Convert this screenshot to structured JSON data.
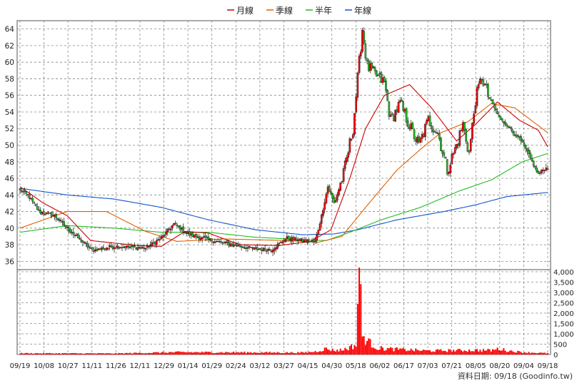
{
  "chart_data": {
    "type": "candlestick",
    "legend": {
      "position": "top-center",
      "items": [
        {
          "label": "月線",
          "color": "#cc0000"
        },
        {
          "label": "季線",
          "color": "#e06000"
        },
        {
          "label": "半年",
          "color": "#22bb22"
        },
        {
          "label": "年線",
          "color": "#1155cc"
        }
      ]
    },
    "colors": {
      "up": "#ff0000",
      "down": "#22bb22",
      "volume": "#ff0000",
      "grid": "#888888"
    },
    "price_axis": {
      "ylim": [
        35,
        65
      ],
      "ticks": [
        36,
        38,
        40,
        42,
        44,
        46,
        48,
        50,
        52,
        54,
        56,
        58,
        60,
        62,
        64
      ]
    },
    "volume_axis": {
      "ylim": [
        0,
        4000
      ],
      "ticks": [
        0,
        500,
        1000,
        1500,
        2000,
        2500,
        3000,
        3500,
        4000
      ],
      "tick_labels": [
        "0",
        "500",
        "1,000",
        "1,500",
        "2,000",
        "2,500",
        "3,000",
        "3,500",
        "4,000"
      ]
    },
    "x_labels": [
      "09/19",
      "10/08",
      "10/27",
      "11/11",
      "11/26",
      "12/11",
      "12/29",
      "01/14",
      "01/29",
      "02/24",
      "03/12",
      "03/27",
      "04/15",
      "04/30",
      "05/18",
      "06/02",
      "06/17",
      "07/03",
      "07/21",
      "08/05",
      "08/20",
      "09/04",
      "09/18"
    ],
    "grid": true,
    "footer": "資料日期: 09/18 (Goodinfo.tw)",
    "price_anchors": [
      [
        0,
        44.5
      ],
      [
        5,
        44.0
      ],
      [
        12,
        42.0
      ],
      [
        22,
        41.5
      ],
      [
        30,
        40.0
      ],
      [
        40,
        38.3
      ],
      [
        46,
        37.3
      ],
      [
        60,
        37.8
      ],
      [
        80,
        37.6
      ],
      [
        90,
        38.8
      ],
      [
        98,
        40.5
      ],
      [
        108,
        39.2
      ],
      [
        125,
        38.4
      ],
      [
        140,
        37.8
      ],
      [
        150,
        37.5
      ],
      [
        160,
        37.4
      ],
      [
        170,
        38.8
      ],
      [
        180,
        38.5
      ],
      [
        188,
        38.3
      ],
      [
        192,
        41.5
      ],
      [
        196,
        45.0
      ],
      [
        200,
        43.0
      ],
      [
        206,
        46.5
      ],
      [
        212,
        52.0
      ],
      [
        218,
        64.0
      ],
      [
        221,
        59.5
      ],
      [
        226,
        58.5
      ],
      [
        232,
        57.5
      ],
      [
        236,
        53.0
      ],
      [
        242,
        55.0
      ],
      [
        250,
        51.5
      ],
      [
        254,
        50.0
      ],
      [
        260,
        53.0
      ],
      [
        266,
        51.5
      ],
      [
        272,
        47.0
      ],
      [
        278,
        50.0
      ],
      [
        282,
        52.5
      ],
      [
        286,
        49.0
      ],
      [
        290,
        55.5
      ],
      [
        294,
        58.2
      ],
      [
        298,
        56.0
      ],
      [
        302,
        54.5
      ],
      [
        306,
        53.0
      ],
      [
        310,
        52.5
      ],
      [
        314,
        51.5
      ],
      [
        318,
        50.8
      ],
      [
        322,
        49.5
      ],
      [
        326,
        48.0
      ],
      [
        330,
        46.5
      ],
      [
        334,
        47.2
      ]
    ],
    "ma_month": [
      [
        0,
        45.0
      ],
      [
        15,
        43.0
      ],
      [
        30,
        41.5
      ],
      [
        45,
        38.5
      ],
      [
        75,
        37.9
      ],
      [
        90,
        37.8
      ],
      [
        105,
        39.6
      ],
      [
        120,
        39.4
      ],
      [
        140,
        38.0
      ],
      [
        165,
        37.9
      ],
      [
        185,
        38.4
      ],
      [
        198,
        39.8
      ],
      [
        210,
        46.0
      ],
      [
        220,
        52.0
      ],
      [
        232,
        56.0
      ],
      [
        248,
        57.3
      ],
      [
        262,
        54.5
      ],
      [
        278,
        50.5
      ],
      [
        290,
        52.5
      ],
      [
        304,
        55.2
      ],
      [
        318,
        53.0
      ],
      [
        330,
        51.8
      ],
      [
        336,
        49.8
      ]
    ],
    "ma_quarter": [
      [
        0,
        40.0
      ],
      [
        30,
        42.0
      ],
      [
        55,
        42.0
      ],
      [
        80,
        39.6
      ],
      [
        100,
        38.4
      ],
      [
        130,
        38.7
      ],
      [
        170,
        38.5
      ],
      [
        190,
        38.3
      ],
      [
        205,
        39.0
      ],
      [
        220,
        42.5
      ],
      [
        240,
        47.0
      ],
      [
        255,
        49.5
      ],
      [
        268,
        51.5
      ],
      [
        285,
        52.8
      ],
      [
        300,
        55.0
      ],
      [
        315,
        54.5
      ],
      [
        336,
        51.5
      ]
    ],
    "ma_half": [
      [
        0,
        39.5
      ],
      [
        30,
        40.3
      ],
      [
        60,
        40.0
      ],
      [
        90,
        39.5
      ],
      [
        120,
        39.5
      ],
      [
        150,
        38.9
      ],
      [
        180,
        38.6
      ],
      [
        195,
        38.5
      ],
      [
        210,
        39.5
      ],
      [
        230,
        41.0
      ],
      [
        255,
        42.5
      ],
      [
        280,
        44.5
      ],
      [
        300,
        45.8
      ],
      [
        320,
        48.0
      ],
      [
        336,
        49.0
      ]
    ],
    "ma_year": [
      [
        0,
        44.8
      ],
      [
        30,
        44.0
      ],
      [
        60,
        43.5
      ],
      [
        90,
        42.5
      ],
      [
        120,
        41.0
      ],
      [
        150,
        39.8
      ],
      [
        180,
        39.2
      ],
      [
        200,
        39.3
      ],
      [
        215,
        39.8
      ],
      [
        240,
        41.0
      ],
      [
        270,
        42.0
      ],
      [
        290,
        42.8
      ],
      [
        310,
        43.8
      ],
      [
        336,
        44.3
      ]
    ],
    "volume_anchors": [
      [
        0,
        60
      ],
      [
        60,
        50
      ],
      [
        100,
        110
      ],
      [
        150,
        100
      ],
      [
        180,
        90
      ],
      [
        188,
        140
      ],
      [
        195,
        280
      ],
      [
        200,
        200
      ],
      [
        205,
        220
      ],
      [
        210,
        340
      ],
      [
        214,
        460
      ],
      [
        216,
        4250
      ],
      [
        218,
        900
      ],
      [
        222,
        600
      ],
      [
        228,
        300
      ],
      [
        240,
        250
      ],
      [
        260,
        180
      ],
      [
        290,
        210
      ],
      [
        300,
        200
      ],
      [
        305,
        280
      ],
      [
        310,
        190
      ],
      [
        320,
        110
      ],
      [
        336,
        60
      ]
    ]
  }
}
